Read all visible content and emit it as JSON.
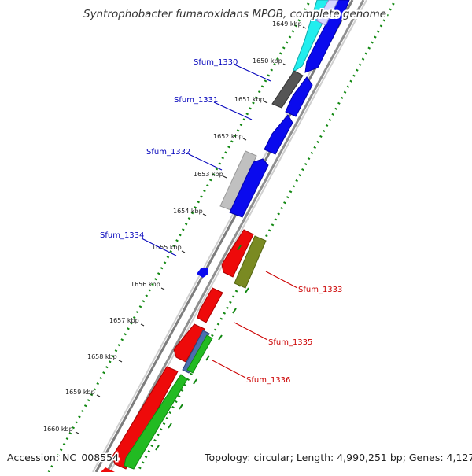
{
  "title": "Syntrophobacter fumaroxidans MPOB, complete genome",
  "footer": {
    "accession": "Accession: NC_008554",
    "topology": "Topology: circular; Length: 4,990,251 bp; Genes: 4,127"
  },
  "ticks": [
    "1649 kbp",
    "1650 kbp",
    "1651 kbp",
    "1652 kbp",
    "1653 kbp",
    "1654 kbp",
    "1655 kbp",
    "1656 kbp",
    "1657 kbp",
    "1658 kbp",
    "1659 kbp",
    "1660 kbp"
  ],
  "gene_labels": {
    "sfum_1330": "Sfum_1330",
    "sfum_1331": "Sfum_1331",
    "sfum_1332": "Sfum_1332",
    "sfum_1334": "Sfum_1334",
    "sfum_1333": "Sfum_1333",
    "sfum_1335": "Sfum_1335",
    "sfum_1336": "Sfum_1336"
  },
  "colors": {
    "backbone": "#888888",
    "forward_label": "#0000bb",
    "reverse_label": "#cc0000",
    "blue_gene": "#0a0aee",
    "red_gene": "#ee0a0a",
    "green_gene": "#22bb22",
    "olive_gene": "#7a8a22",
    "cyan_gene": "#22eeee",
    "grey_gene": "#555555",
    "lightgrey_gene": "#bbbbbb",
    "steel_gene": "#4a6fb0",
    "dots": "#118811"
  }
}
